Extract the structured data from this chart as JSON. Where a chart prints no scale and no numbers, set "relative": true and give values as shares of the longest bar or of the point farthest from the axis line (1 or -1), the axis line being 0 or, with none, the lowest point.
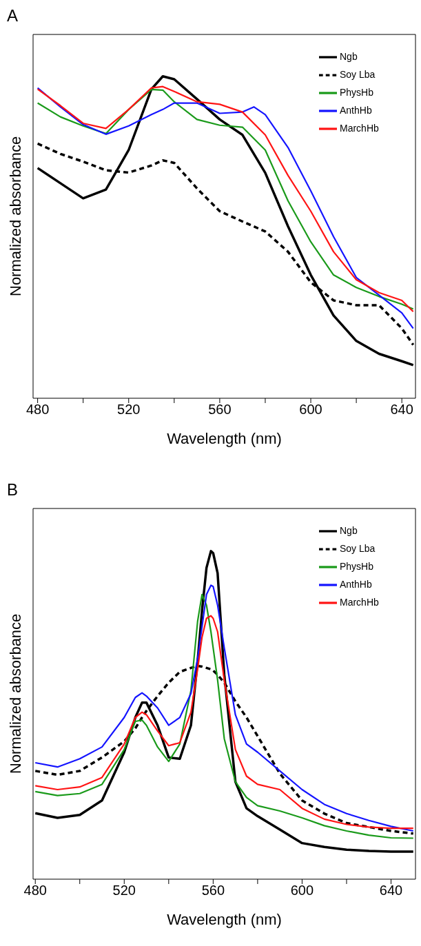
{
  "chart_data": [
    {
      "type": "line",
      "title": "A",
      "xlabel": "Wavelength (nm)",
      "ylabel": "Normalized absorbance",
      "relative": true,
      "xlim": [
        478,
        646
      ],
      "xticks": [
        480,
        {
          "value": 500,
          "label": null
        },
        520,
        {
          "value": 540,
          "label": null
        },
        560,
        {
          "value": 580,
          "label": null
        },
        600,
        {
          "value": 620,
          "label": null
        },
        640
      ],
      "legend": "top right",
      "grid": false,
      "marker": "none",
      "x": [
        480,
        490,
        500,
        510,
        520,
        530,
        535,
        540,
        550,
        560,
        570,
        580,
        590,
        600,
        610,
        620,
        630,
        640,
        645
      ],
      "series": [
        {
          "name": "Ngb",
          "color": "#000000",
          "line_style": "solid",
          "values": [
            0.715,
            0.668,
            0.621,
            0.648,
            0.771,
            0.96,
            1,
            0.991,
            0.929,
            0.866,
            0.818,
            0.7,
            0.534,
            0.383,
            0.257,
            0.178,
            0.138,
            0.115,
            0.103
          ]
        },
        {
          "name": "Soy Lba",
          "color": "#000000",
          "line_style": "dashed",
          "values": [
            0.791,
            0.759,
            0.735,
            0.708,
            0.701,
            0.723,
            0.739,
            0.731,
            0.652,
            0.581,
            0.549,
            0.518,
            0.455,
            0.36,
            0.304,
            0.289,
            0.289,
            0.217,
            0.166
          ]
        },
        {
          "name": "PhysHb",
          "color": "#1a9a1a",
          "line_style": "solid",
          "values": [
            0.917,
            0.874,
            0.846,
            0.822,
            0.897,
            0.959,
            0.957,
            0.921,
            0.866,
            0.848,
            0.842,
            0.771,
            0.613,
            0.486,
            0.383,
            0.344,
            0.316,
            0.292,
            0.277
          ]
        },
        {
          "name": "AnthHb",
          "color": "#1414ff",
          "line_style": "solid",
          "x": [
            480,
            490,
            500,
            510,
            520,
            530,
            535,
            540,
            550,
            560,
            570,
            575,
            580,
            590,
            600,
            610,
            620,
            630,
            640,
            645
          ],
          "values": [
            0.964,
            0.905,
            0.85,
            0.82,
            0.846,
            0.881,
            0.897,
            0.917,
            0.917,
            0.885,
            0.889,
            0.905,
            0.881,
            0.779,
            0.644,
            0.502,
            0.375,
            0.32,
            0.265,
            0.217
          ]
        },
        {
          "name": "MarchHb",
          "color": "#ff1414",
          "line_style": "solid",
          "values": [
            0.96,
            0.909,
            0.854,
            0.838,
            0.897,
            0.964,
            0.968,
            0.953,
            0.921,
            0.913,
            0.889,
            0.818,
            0.692,
            0.581,
            0.455,
            0.368,
            0.328,
            0.304,
            0.269
          ]
        }
      ]
    },
    {
      "type": "line",
      "title": "B",
      "xlabel": "Wavelength (nm)",
      "ylabel": "Normalized absorbance",
      "relative": true,
      "xlim": [
        479,
        651
      ],
      "xticks": [
        480,
        {
          "value": 500,
          "label": null
        },
        520,
        {
          "value": 540,
          "label": null
        },
        560,
        {
          "value": 580,
          "label": null
        },
        600,
        {
          "value": 620,
          "label": null
        },
        640
      ],
      "legend": "top right",
      "grid": false,
      "marker": "none",
      "x": [
        480,
        490,
        500,
        510,
        520,
        525,
        528,
        530,
        535,
        540,
        545,
        550,
        553,
        555,
        557,
        559,
        560,
        562,
        565,
        570,
        575,
        580,
        590,
        600,
        610,
        620,
        630,
        640,
        650
      ],
      "series": [
        {
          "name": "Ngb",
          "color": "#000000",
          "line_style": "solid",
          "values": [
            0.201,
            0.187,
            0.196,
            0.24,
            0.387,
            0.493,
            0.538,
            0.538,
            0.469,
            0.371,
            0.367,
            0.469,
            0.664,
            0.819,
            0.949,
            1,
            0.994,
            0.933,
            0.623,
            0.297,
            0.216,
            0.192,
            0.151,
            0.11,
            0.098,
            0.09,
            0.086,
            0.084,
            0.084
          ]
        },
        {
          "name": "Soy Lba",
          "color": "#000000",
          "line_style": "dashed",
          "values": [
            0.33,
            0.318,
            0.33,
            0.371,
            0.42,
            0.46,
            0.493,
            0.513,
            0.558,
            0.599,
            0.632,
            0.644,
            0.65,
            0.648,
            0.644,
            0.64,
            0.636,
            0.623,
            0.599,
            0.542,
            0.493,
            0.436,
            0.322,
            0.24,
            0.2,
            0.171,
            0.159,
            0.147,
            0.139
          ]
        },
        {
          "name": "PhysHb",
          "color": "#1a9a1a",
          "line_style": "solid",
          "values": [
            0.267,
            0.255,
            0.261,
            0.289,
            0.395,
            0.481,
            0.485,
            0.469,
            0.403,
            0.359,
            0.412,
            0.575,
            0.786,
            0.868,
            0.835,
            0.754,
            0.705,
            0.607,
            0.428,
            0.297,
            0.249,
            0.224,
            0.208,
            0.187,
            0.163,
            0.147,
            0.134,
            0.126,
            0.125
          ]
        },
        {
          "name": "AnthHb",
          "color": "#1414ff",
          "line_style": "solid",
          "values": [
            0.355,
            0.342,
            0.367,
            0.403,
            0.493,
            0.554,
            0.568,
            0.558,
            0.522,
            0.469,
            0.493,
            0.566,
            0.672,
            0.77,
            0.868,
            0.896,
            0.892,
            0.835,
            0.705,
            0.501,
            0.412,
            0.387,
            0.33,
            0.273,
            0.228,
            0.2,
            0.179,
            0.161,
            0.147
          ]
        },
        {
          "name": "MarchHb",
          "color": "#ff1414",
          "line_style": "solid",
          "values": [
            0.285,
            0.273,
            0.281,
            0.31,
            0.412,
            0.493,
            0.509,
            0.501,
            0.452,
            0.407,
            0.416,
            0.509,
            0.64,
            0.738,
            0.795,
            0.803,
            0.795,
            0.754,
            0.607,
            0.395,
            0.314,
            0.289,
            0.273,
            0.216,
            0.183,
            0.167,
            0.159,
            0.155,
            0.155
          ]
        }
      ]
    }
  ]
}
